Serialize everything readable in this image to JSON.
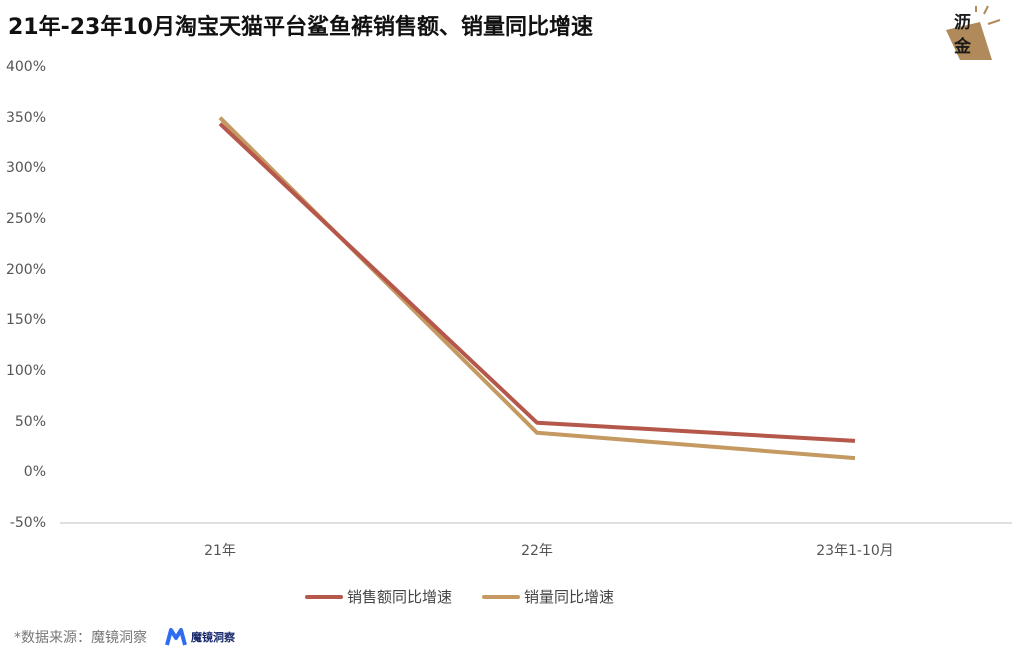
{
  "title": "21年-23年10月淘宝天猫平台鲨鱼裤销售额、销量同比增速",
  "logo": {
    "line1": "沥",
    "line2": "金",
    "accent": "#b08a5a"
  },
  "chart_data": {
    "type": "line",
    "title": "21年-23年10月淘宝天猫平台鲨鱼裤销售额、销量同比增速",
    "categories": [
      "21年",
      "22年",
      "23年1-10月"
    ],
    "series": [
      {
        "name": "销售额同比增速",
        "color": "#b5574a",
        "values": [
          344,
          49,
          31
        ]
      },
      {
        "name": "销量同比增速",
        "color": "#c49a62",
        "values": [
          350,
          39,
          14
        ]
      }
    ],
    "xlabel": "",
    "ylabel": "",
    "ylim": [
      -50,
      400
    ],
    "yticks": [
      "400%",
      "350%",
      "300%",
      "250%",
      "200%",
      "150%",
      "100%",
      "50%",
      "0%",
      "-50%"
    ],
    "grid": false,
    "legend_position": "bottom"
  },
  "legend": [
    {
      "label": "销售额同比增速",
      "color": "#b5574a"
    },
    {
      "label": "销量同比增速",
      "color": "#c49a62"
    }
  ],
  "source": {
    "text": "*数据来源：魔镜洞察",
    "brand": "魔镜洞察"
  }
}
